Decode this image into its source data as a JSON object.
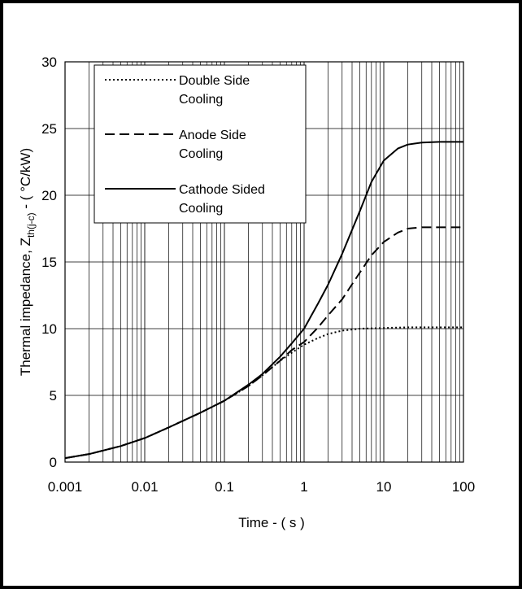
{
  "chart_data": {
    "type": "line",
    "xlabel": "Time - ( s )",
    "ylabel": {
      "prefix": "Thermal impedance, Z",
      "subscript": "th(j-c)",
      "suffix": " - ( °C/kW)"
    },
    "xscale": "log",
    "xlim": [
      0.001,
      100
    ],
    "ylim": [
      0,
      30
    ],
    "x_ticks": [
      "0.001",
      "0.01",
      "0.1",
      "1",
      "10",
      "100"
    ],
    "y_ticks": [
      "0",
      "5",
      "10",
      "15",
      "20",
      "25",
      "30"
    ],
    "grid": true,
    "legend_position": "top-left",
    "series": [
      {
        "name": "Double Side Cooling",
        "style": "dotted",
        "points": [
          [
            0.001,
            0.3
          ],
          [
            0.002,
            0.6
          ],
          [
            0.005,
            1.2
          ],
          [
            0.01,
            1.8
          ],
          [
            0.02,
            2.6
          ],
          [
            0.05,
            3.7
          ],
          [
            0.1,
            4.6
          ],
          [
            0.2,
            5.7
          ],
          [
            0.3,
            6.5
          ],
          [
            0.5,
            7.6
          ],
          [
            0.7,
            8.2
          ],
          [
            1,
            8.8
          ],
          [
            1.5,
            9.3
          ],
          [
            2,
            9.6
          ],
          [
            3,
            9.85
          ],
          [
            5,
            10.0
          ],
          [
            10,
            10.05
          ],
          [
            20,
            10.1
          ],
          [
            50,
            10.1
          ],
          [
            100,
            10.1
          ]
        ]
      },
      {
        "name": "Anode Side Cooling",
        "style": "dashed",
        "points": [
          [
            0.001,
            0.3
          ],
          [
            0.002,
            0.6
          ],
          [
            0.005,
            1.2
          ],
          [
            0.01,
            1.8
          ],
          [
            0.02,
            2.6
          ],
          [
            0.05,
            3.7
          ],
          [
            0.1,
            4.6
          ],
          [
            0.2,
            5.7
          ],
          [
            0.3,
            6.5
          ],
          [
            0.5,
            7.6
          ],
          [
            0.7,
            8.4
          ],
          [
            1,
            9.0
          ],
          [
            1.5,
            10.1
          ],
          [
            2,
            11.0
          ],
          [
            3,
            12.2
          ],
          [
            5,
            14.2
          ],
          [
            7,
            15.5
          ],
          [
            10,
            16.5
          ],
          [
            15,
            17.2
          ],
          [
            20,
            17.5
          ],
          [
            30,
            17.6
          ],
          [
            50,
            17.6
          ],
          [
            100,
            17.6
          ]
        ]
      },
      {
        "name": "Cathode Sided Cooling",
        "style": "solid",
        "points": [
          [
            0.001,
            0.3
          ],
          [
            0.002,
            0.6
          ],
          [
            0.005,
            1.2
          ],
          [
            0.01,
            1.8
          ],
          [
            0.02,
            2.6
          ],
          [
            0.05,
            3.7
          ],
          [
            0.1,
            4.6
          ],
          [
            0.2,
            5.8
          ],
          [
            0.3,
            6.6
          ],
          [
            0.5,
            7.9
          ],
          [
            0.7,
            8.9
          ],
          [
            1,
            10.0
          ],
          [
            1.5,
            11.9
          ],
          [
            2,
            13.3
          ],
          [
            3,
            15.6
          ],
          [
            5,
            18.8
          ],
          [
            7,
            21.0
          ],
          [
            10,
            22.6
          ],
          [
            15,
            23.5
          ],
          [
            20,
            23.8
          ],
          [
            30,
            23.95
          ],
          [
            50,
            24.0
          ],
          [
            100,
            24.0
          ]
        ]
      }
    ]
  },
  "legend": {
    "items": [
      {
        "line1": "Double Side",
        "line2": "Cooling"
      },
      {
        "line1": "Anode Side",
        "line2": "Cooling"
      },
      {
        "line1": "Cathode Sided",
        "line2": "Cooling"
      }
    ]
  }
}
